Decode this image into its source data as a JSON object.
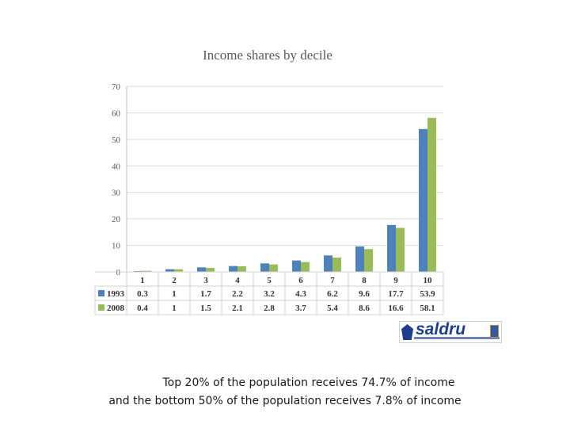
{
  "chart_data": {
    "type": "bar",
    "title": "Income shares by decile",
    "categories": [
      "1",
      "2",
      "3",
      "4",
      "5",
      "6",
      "7",
      "8",
      "9",
      "10"
    ],
    "series": [
      {
        "name": "1993",
        "values": [
          0.3,
          1,
          1.7,
          2.2,
          3.2,
          4.3,
          6.2,
          9.6,
          17.7,
          53.9
        ],
        "labels": [
          "0.3",
          "1",
          "1.7",
          "2.2",
          "3.2",
          "4.3",
          "6.2",
          "9.6",
          "17.7",
          "53.9"
        ],
        "color": "#4f81bd"
      },
      {
        "name": "2008",
        "values": [
          0.4,
          1,
          1.5,
          2.1,
          2.8,
          3.7,
          5.4,
          8.6,
          16.6,
          58.1
        ],
        "labels": [
          "0.4",
          "1",
          "1.5",
          "2.1",
          "2.8",
          "3.7",
          "5.4",
          "8.6",
          "16.6",
          "58.1"
        ],
        "color": "#9bbb59"
      }
    ],
    "yticks": [
      "0",
      "10",
      "20",
      "30",
      "40",
      "50",
      "60",
      "70"
    ],
    "ylim": [
      0,
      70
    ],
    "grid": true,
    "legend_placement": "data-table-left",
    "has_data_table": true
  },
  "logo": {
    "text": "saldru"
  },
  "caption": {
    "line1": "Top 20% of the population receives 74.7% of income",
    "line2": "and the bottom 50% of the population receives 7.8% of income"
  }
}
